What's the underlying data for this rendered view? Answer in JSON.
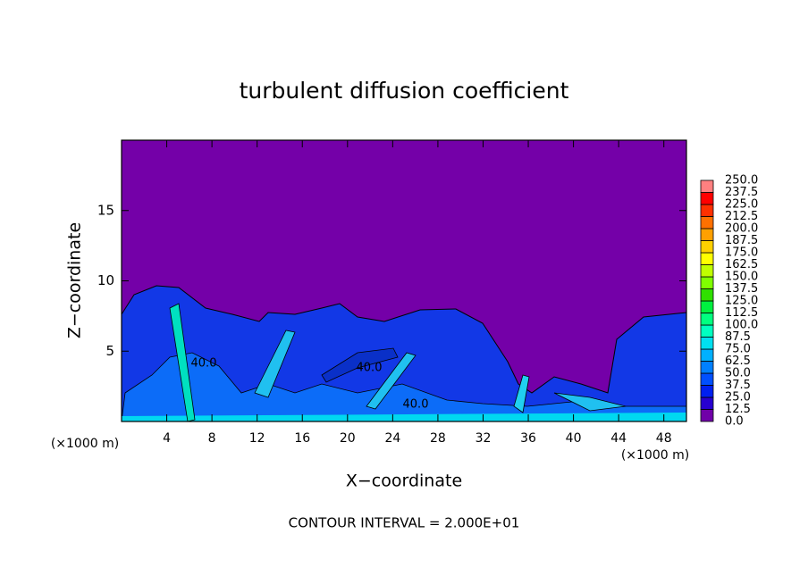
{
  "chart_data": {
    "type": "contour",
    "title": "turbulent diffusion coefficient",
    "x_label": "X−coordinate",
    "y_label": "Z−coordinate",
    "x_unit": "(×1000 m)",
    "footer": "CONTOUR INTERVAL = 2.000E+01",
    "xlim": [
      0,
      50
    ],
    "xticks": [
      4,
      8,
      12,
      16,
      20,
      24,
      28,
      32,
      36,
      40,
      44,
      48
    ],
    "ylim": [
      0,
      20
    ],
    "yticks": [
      5,
      10,
      15
    ],
    "colorbar": {
      "levels": [
        {
          "value": 0,
          "label": "0.0"
        },
        {
          "value": 12.5,
          "label": "12.5"
        },
        {
          "value": 25,
          "label": "25.0"
        },
        {
          "value": 37.5,
          "label": "37.5"
        },
        {
          "value": 50,
          "label": "50.0"
        },
        {
          "value": 62.5,
          "label": "62.5"
        },
        {
          "value": 75,
          "label": "75.0"
        },
        {
          "value": 87.5,
          "label": "87.5"
        },
        {
          "value": 100,
          "label": "100.0"
        },
        {
          "value": 112.5,
          "label": "112.5"
        },
        {
          "value": 125,
          "label": "125.0"
        },
        {
          "value": 137.5,
          "label": "137.5"
        },
        {
          "value": 150,
          "label": "150.0"
        },
        {
          "value": 162.5,
          "label": "162.5"
        },
        {
          "value": 175,
          "label": "175.0"
        },
        {
          "value": 187.5,
          "label": "187.5"
        },
        {
          "value": 200,
          "label": "200.0"
        },
        {
          "value": 212.5,
          "label": "212.5"
        },
        {
          "value": 225,
          "label": "225.0"
        },
        {
          "value": 237.5,
          "label": "237.5"
        },
        {
          "value": 250,
          "label": "250.0"
        }
      ],
      "colors": [
        "#7000a8",
        "#2800d0",
        "#0020f0",
        "#0050ff",
        "#0080ff",
        "#00b0ff",
        "#00e0f0",
        "#00ffc0",
        "#00ff80",
        "#00f040",
        "#30e000",
        "#80ff00",
        "#c0ff00",
        "#ffff00",
        "#ffd000",
        "#ffa000",
        "#ff7000",
        "#ff3000",
        "#ff0000",
        "#ff8080"
      ]
    },
    "contour_labels": [
      {
        "value": 40,
        "label": "40.0"
      },
      {
        "value": 40,
        "label": "40.0"
      },
      {
        "value": 40,
        "label": "40.0"
      }
    ]
  }
}
